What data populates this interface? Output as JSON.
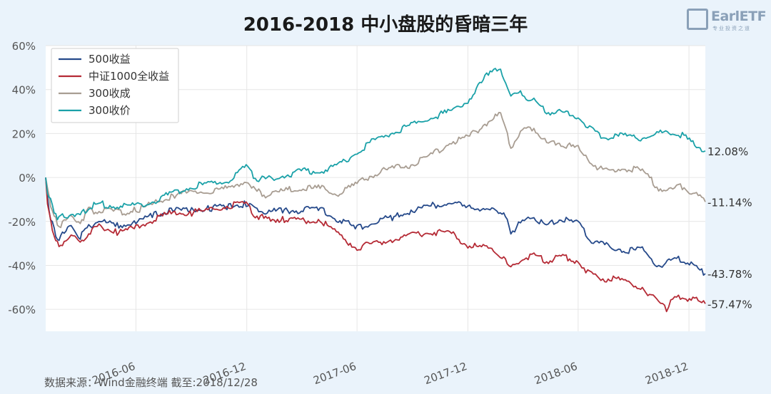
{
  "title": "2016-2018 中小盘股的昏暗三年",
  "logo": {
    "text": "EarlETF",
    "sub": "专业投资之道"
  },
  "source": "数据来源：Wind金融终端 截至:2018/12/28",
  "chart_data": {
    "type": "line",
    "xlabel": "",
    "ylabel": "",
    "x_range": [
      "2016-01-04",
      "2018-12-28"
    ],
    "ylim": [
      -70,
      60
    ],
    "yticks": [
      -60,
      -40,
      -20,
      0,
      20,
      40,
      60
    ],
    "ytick_labels": [
      "-60%",
      "-40%",
      "-20%",
      "0%",
      "20%",
      "40%",
      "60%"
    ],
    "xticks": [
      "2016-06-01",
      "2016-12-01",
      "2017-06-01",
      "2017-12-01",
      "2018-06-01",
      "2018-12-01"
    ],
    "xtick_labels": [
      "2016-06",
      "2016-12",
      "2017-06",
      "2017-12",
      "2018-06",
      "2018-12"
    ],
    "grid": true,
    "legend_position": "top-left",
    "series": [
      {
        "name": "500收益",
        "color": "#25498a",
        "end_label": "-43.78%",
        "points": [
          [
            "2016-01-04",
            0
          ],
          [
            "2016-01-07",
            -10
          ],
          [
            "2016-01-12",
            -18
          ],
          [
            "2016-01-18",
            -24
          ],
          [
            "2016-01-26",
            -28
          ],
          [
            "2016-02-15",
            -22
          ],
          [
            "2016-03-01",
            -27
          ],
          [
            "2016-03-15",
            -22
          ],
          [
            "2016-04-01",
            -20
          ],
          [
            "2016-05-01",
            -22
          ],
          [
            "2016-06-01",
            -21
          ],
          [
            "2016-07-01",
            -17
          ],
          [
            "2016-08-01",
            -15
          ],
          [
            "2016-09-01",
            -15
          ],
          [
            "2016-10-01",
            -14
          ],
          [
            "2016-11-01",
            -13
          ],
          [
            "2016-11-30",
            -12
          ],
          [
            "2016-12-15",
            -15
          ],
          [
            "2017-01-01",
            -16
          ],
          [
            "2017-02-01",
            -15
          ],
          [
            "2017-03-01",
            -15
          ],
          [
            "2017-04-01",
            -14
          ],
          [
            "2017-05-01",
            -19
          ],
          [
            "2017-06-01",
            -23
          ],
          [
            "2017-07-01",
            -20
          ],
          [
            "2017-08-01",
            -18
          ],
          [
            "2017-09-01",
            -15
          ],
          [
            "2017-10-01",
            -13
          ],
          [
            "2017-11-01",
            -11
          ],
          [
            "2017-12-01",
            -14
          ],
          [
            "2018-01-01",
            -14
          ],
          [
            "2018-02-01",
            -18
          ],
          [
            "2018-02-10",
            -25
          ],
          [
            "2018-03-01",
            -20
          ],
          [
            "2018-03-20",
            -18
          ],
          [
            "2018-04-10",
            -22
          ],
          [
            "2018-05-01",
            -19
          ],
          [
            "2018-06-01",
            -21
          ],
          [
            "2018-06-20",
            -28
          ],
          [
            "2018-07-15",
            -31
          ],
          [
            "2018-08-15",
            -33
          ],
          [
            "2018-09-15",
            -33
          ],
          [
            "2018-10-12",
            -40
          ],
          [
            "2018-11-01",
            -38
          ],
          [
            "2018-11-20",
            -37
          ],
          [
            "2018-12-28",
            -43.78
          ]
        ]
      },
      {
        "name": "中证1000全收益",
        "color": "#b52a35",
        "end_label": "-57.47%",
        "points": [
          [
            "2016-01-04",
            0
          ],
          [
            "2016-01-07",
            -12
          ],
          [
            "2016-01-12",
            -20
          ],
          [
            "2016-01-18",
            -26
          ],
          [
            "2016-01-26",
            -32
          ],
          [
            "2016-02-15",
            -25
          ],
          [
            "2016-03-01",
            -31
          ],
          [
            "2016-03-15",
            -25
          ],
          [
            "2016-04-01",
            -22
          ],
          [
            "2016-05-01",
            -25
          ],
          [
            "2016-06-01",
            -23
          ],
          [
            "2016-07-01",
            -19
          ],
          [
            "2016-08-01",
            -16
          ],
          [
            "2016-09-01",
            -16
          ],
          [
            "2016-10-01",
            -15
          ],
          [
            "2016-11-01",
            -13
          ],
          [
            "2016-11-30",
            -12
          ],
          [
            "2016-12-15",
            -17
          ],
          [
            "2017-01-01",
            -19
          ],
          [
            "2017-02-01",
            -19
          ],
          [
            "2017-03-01",
            -20
          ],
          [
            "2017-04-01",
            -19
          ],
          [
            "2017-05-01",
            -26
          ],
          [
            "2017-06-01",
            -32
          ],
          [
            "2017-07-01",
            -30
          ],
          [
            "2017-08-01",
            -28
          ],
          [
            "2017-09-01",
            -26
          ],
          [
            "2017-10-01",
            -25
          ],
          [
            "2017-11-01",
            -25
          ],
          [
            "2017-12-01",
            -31
          ],
          [
            "2018-01-01",
            -32
          ],
          [
            "2018-02-01",
            -36
          ],
          [
            "2018-02-10",
            -42
          ],
          [
            "2018-03-01",
            -37
          ],
          [
            "2018-03-20",
            -35
          ],
          [
            "2018-04-10",
            -38
          ],
          [
            "2018-05-01",
            -36
          ],
          [
            "2018-06-01",
            -38
          ],
          [
            "2018-06-20",
            -44
          ],
          [
            "2018-07-15",
            -46
          ],
          [
            "2018-08-15",
            -47
          ],
          [
            "2018-09-15",
            -50
          ],
          [
            "2018-10-12",
            -57
          ],
          [
            "2018-10-25",
            -60
          ],
          [
            "2018-11-01",
            -56
          ],
          [
            "2018-11-20",
            -54
          ],
          [
            "2018-12-28",
            -57.47
          ]
        ]
      },
      {
        "name": "300收成",
        "color": "#a89d92",
        "end_label": "-11.14%",
        "points": [
          [
            "2016-01-04",
            0
          ],
          [
            "2016-01-07",
            -6
          ],
          [
            "2016-01-12",
            -12
          ],
          [
            "2016-01-18",
            -18
          ],
          [
            "2016-01-26",
            -22
          ],
          [
            "2016-02-15",
            -18
          ],
          [
            "2016-03-01",
            -20
          ],
          [
            "2016-03-15",
            -15
          ],
          [
            "2016-04-01",
            -15
          ],
          [
            "2016-05-01",
            -16
          ],
          [
            "2016-06-01",
            -15
          ],
          [
            "2016-07-01",
            -12
          ],
          [
            "2016-08-01",
            -8
          ],
          [
            "2016-09-01",
            -7
          ],
          [
            "2016-10-01",
            -6
          ],
          [
            "2016-11-01",
            -5
          ],
          [
            "2016-11-30",
            -1
          ],
          [
            "2016-12-15",
            -6
          ],
          [
            "2017-01-01",
            -8
          ],
          [
            "2017-02-01",
            -6
          ],
          [
            "2017-03-01",
            -5
          ],
          [
            "2017-04-01",
            -5
          ],
          [
            "2017-05-01",
            -7
          ],
          [
            "2017-06-01",
            -3
          ],
          [
            "2017-07-01",
            2
          ],
          [
            "2017-08-01",
            4
          ],
          [
            "2017-09-01",
            6
          ],
          [
            "2017-10-01",
            10
          ],
          [
            "2017-11-01",
            16
          ],
          [
            "2017-12-01",
            18
          ],
          [
            "2018-01-01",
            25
          ],
          [
            "2018-01-24",
            29
          ],
          [
            "2018-02-10",
            14
          ],
          [
            "2018-03-01",
            21
          ],
          [
            "2018-03-20",
            23
          ],
          [
            "2018-04-10",
            15
          ],
          [
            "2018-05-01",
            16
          ],
          [
            "2018-06-01",
            13
          ],
          [
            "2018-06-20",
            7
          ],
          [
            "2018-07-15",
            3
          ],
          [
            "2018-08-15",
            4
          ],
          [
            "2018-09-15",
            3
          ],
          [
            "2018-10-12",
            -5
          ],
          [
            "2018-11-01",
            -6
          ],
          [
            "2018-11-20",
            -4
          ],
          [
            "2018-12-28",
            -11.14
          ]
        ]
      },
      {
        "name": "300收价",
        "color": "#1aa1a8",
        "end_label": "12.08%",
        "points": [
          [
            "2016-01-04",
            0
          ],
          [
            "2016-01-07",
            -6
          ],
          [
            "2016-01-12",
            -11
          ],
          [
            "2016-01-18",
            -15
          ],
          [
            "2016-01-26",
            -19
          ],
          [
            "2016-02-15",
            -16
          ],
          [
            "2016-03-01",
            -18
          ],
          [
            "2016-03-15",
            -13
          ],
          [
            "2016-04-01",
            -12
          ],
          [
            "2016-05-01",
            -13
          ],
          [
            "2016-06-01",
            -13
          ],
          [
            "2016-07-01",
            -11
          ],
          [
            "2016-08-01",
            -7
          ],
          [
            "2016-09-01",
            -4
          ],
          [
            "2016-10-01",
            -3
          ],
          [
            "2016-11-01",
            -1
          ],
          [
            "2016-11-30",
            5
          ],
          [
            "2016-12-15",
            0
          ],
          [
            "2017-01-01",
            -1
          ],
          [
            "2017-02-01",
            1
          ],
          [
            "2017-03-01",
            3
          ],
          [
            "2017-04-01",
            3
          ],
          [
            "2017-05-01",
            5
          ],
          [
            "2017-06-01",
            12
          ],
          [
            "2017-07-01",
            17
          ],
          [
            "2017-08-01",
            21
          ],
          [
            "2017-09-01",
            24
          ],
          [
            "2017-10-01",
            27
          ],
          [
            "2017-11-01",
            30
          ],
          [
            "2017-12-01",
            35
          ],
          [
            "2018-01-01",
            46
          ],
          [
            "2018-01-24",
            50
          ],
          [
            "2018-02-10",
            37
          ],
          [
            "2018-03-01",
            38
          ],
          [
            "2018-03-20",
            35
          ],
          [
            "2018-04-10",
            30
          ],
          [
            "2018-05-01",
            30
          ],
          [
            "2018-06-01",
            28
          ],
          [
            "2018-06-20",
            22
          ],
          [
            "2018-07-15",
            18
          ],
          [
            "2018-08-15",
            19
          ],
          [
            "2018-09-15",
            18
          ],
          [
            "2018-10-12",
            20
          ],
          [
            "2018-11-01",
            20
          ],
          [
            "2018-11-20",
            19
          ],
          [
            "2018-12-28",
            12.08
          ]
        ]
      }
    ]
  }
}
